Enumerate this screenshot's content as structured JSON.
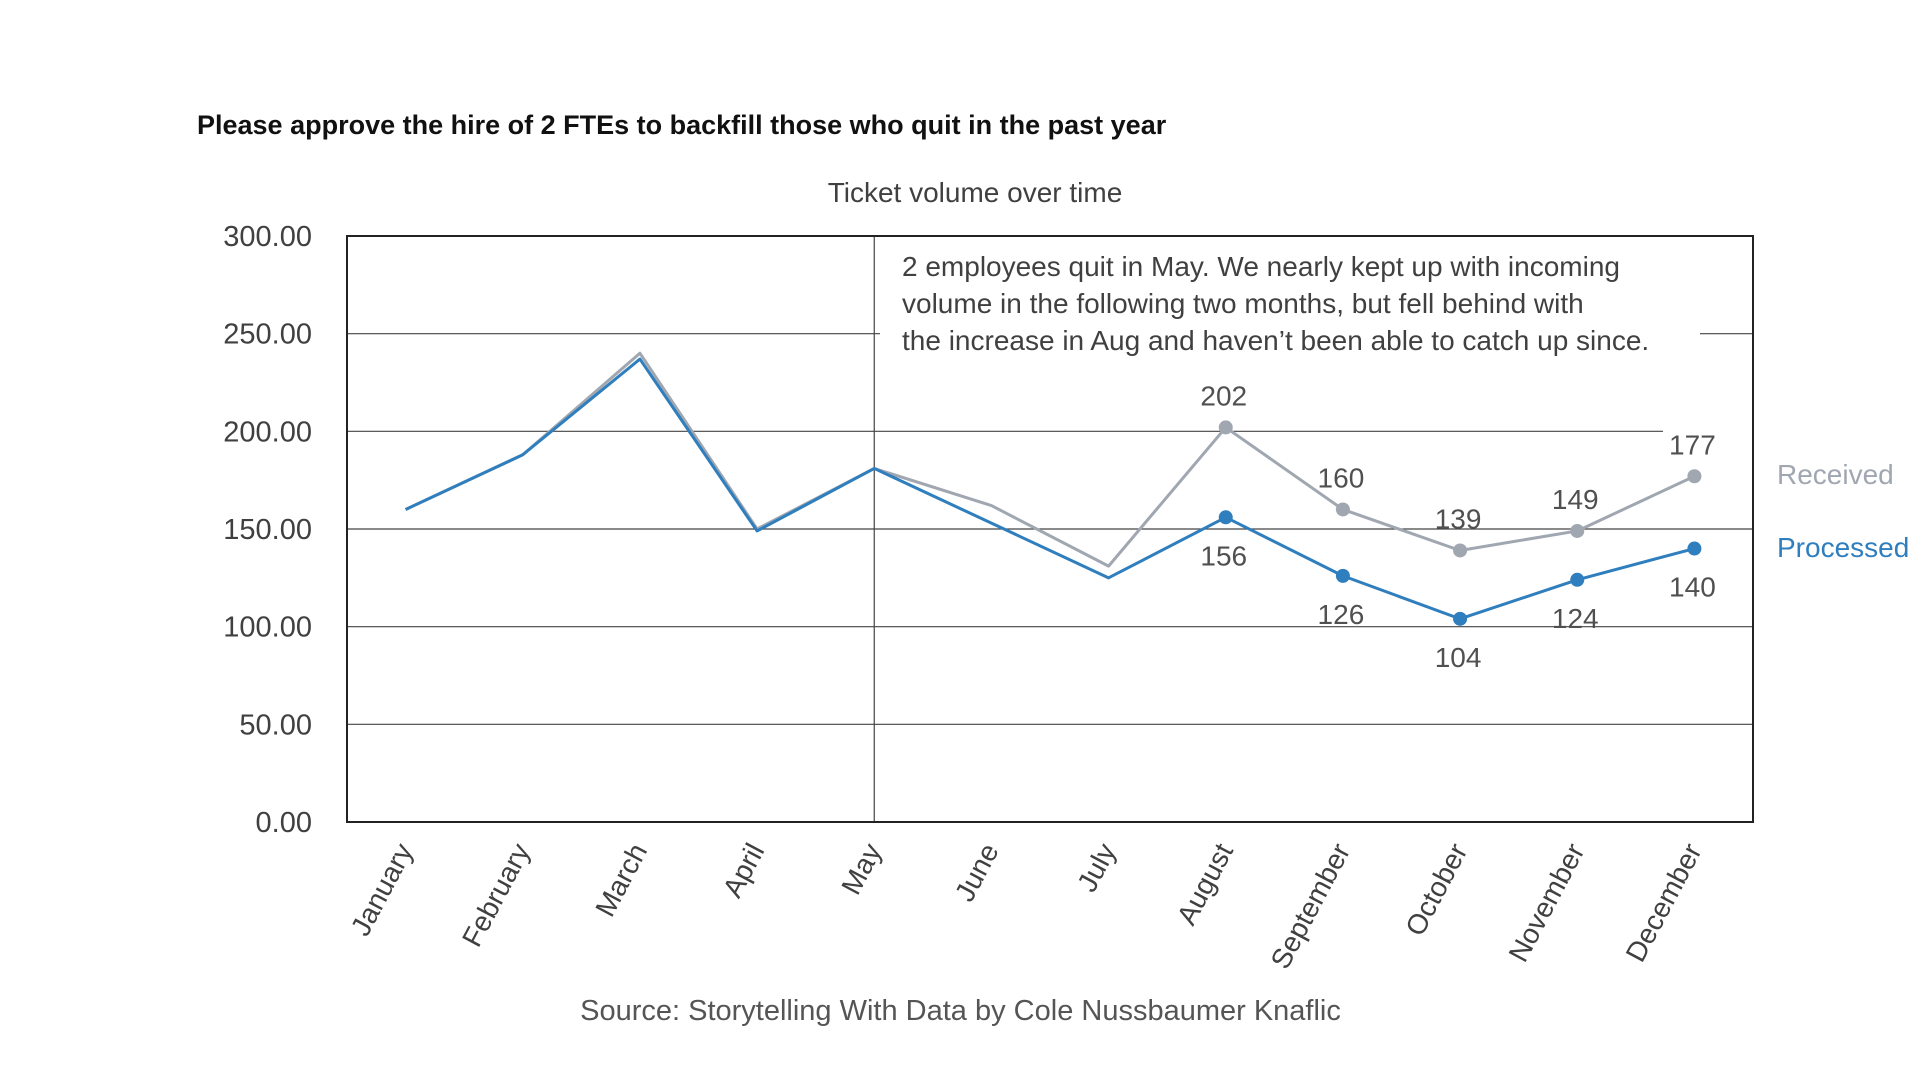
{
  "headline": "Please approve the hire of 2 FTEs to backfill those who quit in the past year",
  "source": "Source: Storytelling With Data by Cole Nussbaumer Knaflic",
  "colors": {
    "received": "#a0a7b1",
    "processed": "#2f7ebd",
    "grid": "#444444",
    "text": "#404040"
  },
  "chart_data": {
    "type": "line",
    "title": "Ticket volume over time",
    "categories": [
      "January",
      "February",
      "March",
      "April",
      "May",
      "June",
      "July",
      "August",
      "September",
      "October",
      "November",
      "December"
    ],
    "series": [
      {
        "name": "Received",
        "values": [
          160,
          188,
          240,
          150,
          181,
          162,
          131,
          202,
          160,
          139,
          149,
          177
        ]
      },
      {
        "name": "Processed",
        "values": [
          160,
          188,
          237,
          149,
          181,
          153,
          125,
          156,
          126,
          104,
          124,
          140
        ]
      }
    ],
    "ylim": [
      0,
      300
    ],
    "yticks": [
      "0.00",
      "50.00",
      "100.00",
      "150.00",
      "200.00",
      "250.00",
      "300.00"
    ],
    "grid": true,
    "legend": "right, direct labels at line ends",
    "labeled_from_index": 7,
    "annotation": {
      "category": "May",
      "lines": [
        "2 employees quit in May. We nearly kept up with incoming",
        "volume in the following two months, but fell behind with",
        "the increase in Aug and haven’t been able to catch up since."
      ]
    }
  }
}
